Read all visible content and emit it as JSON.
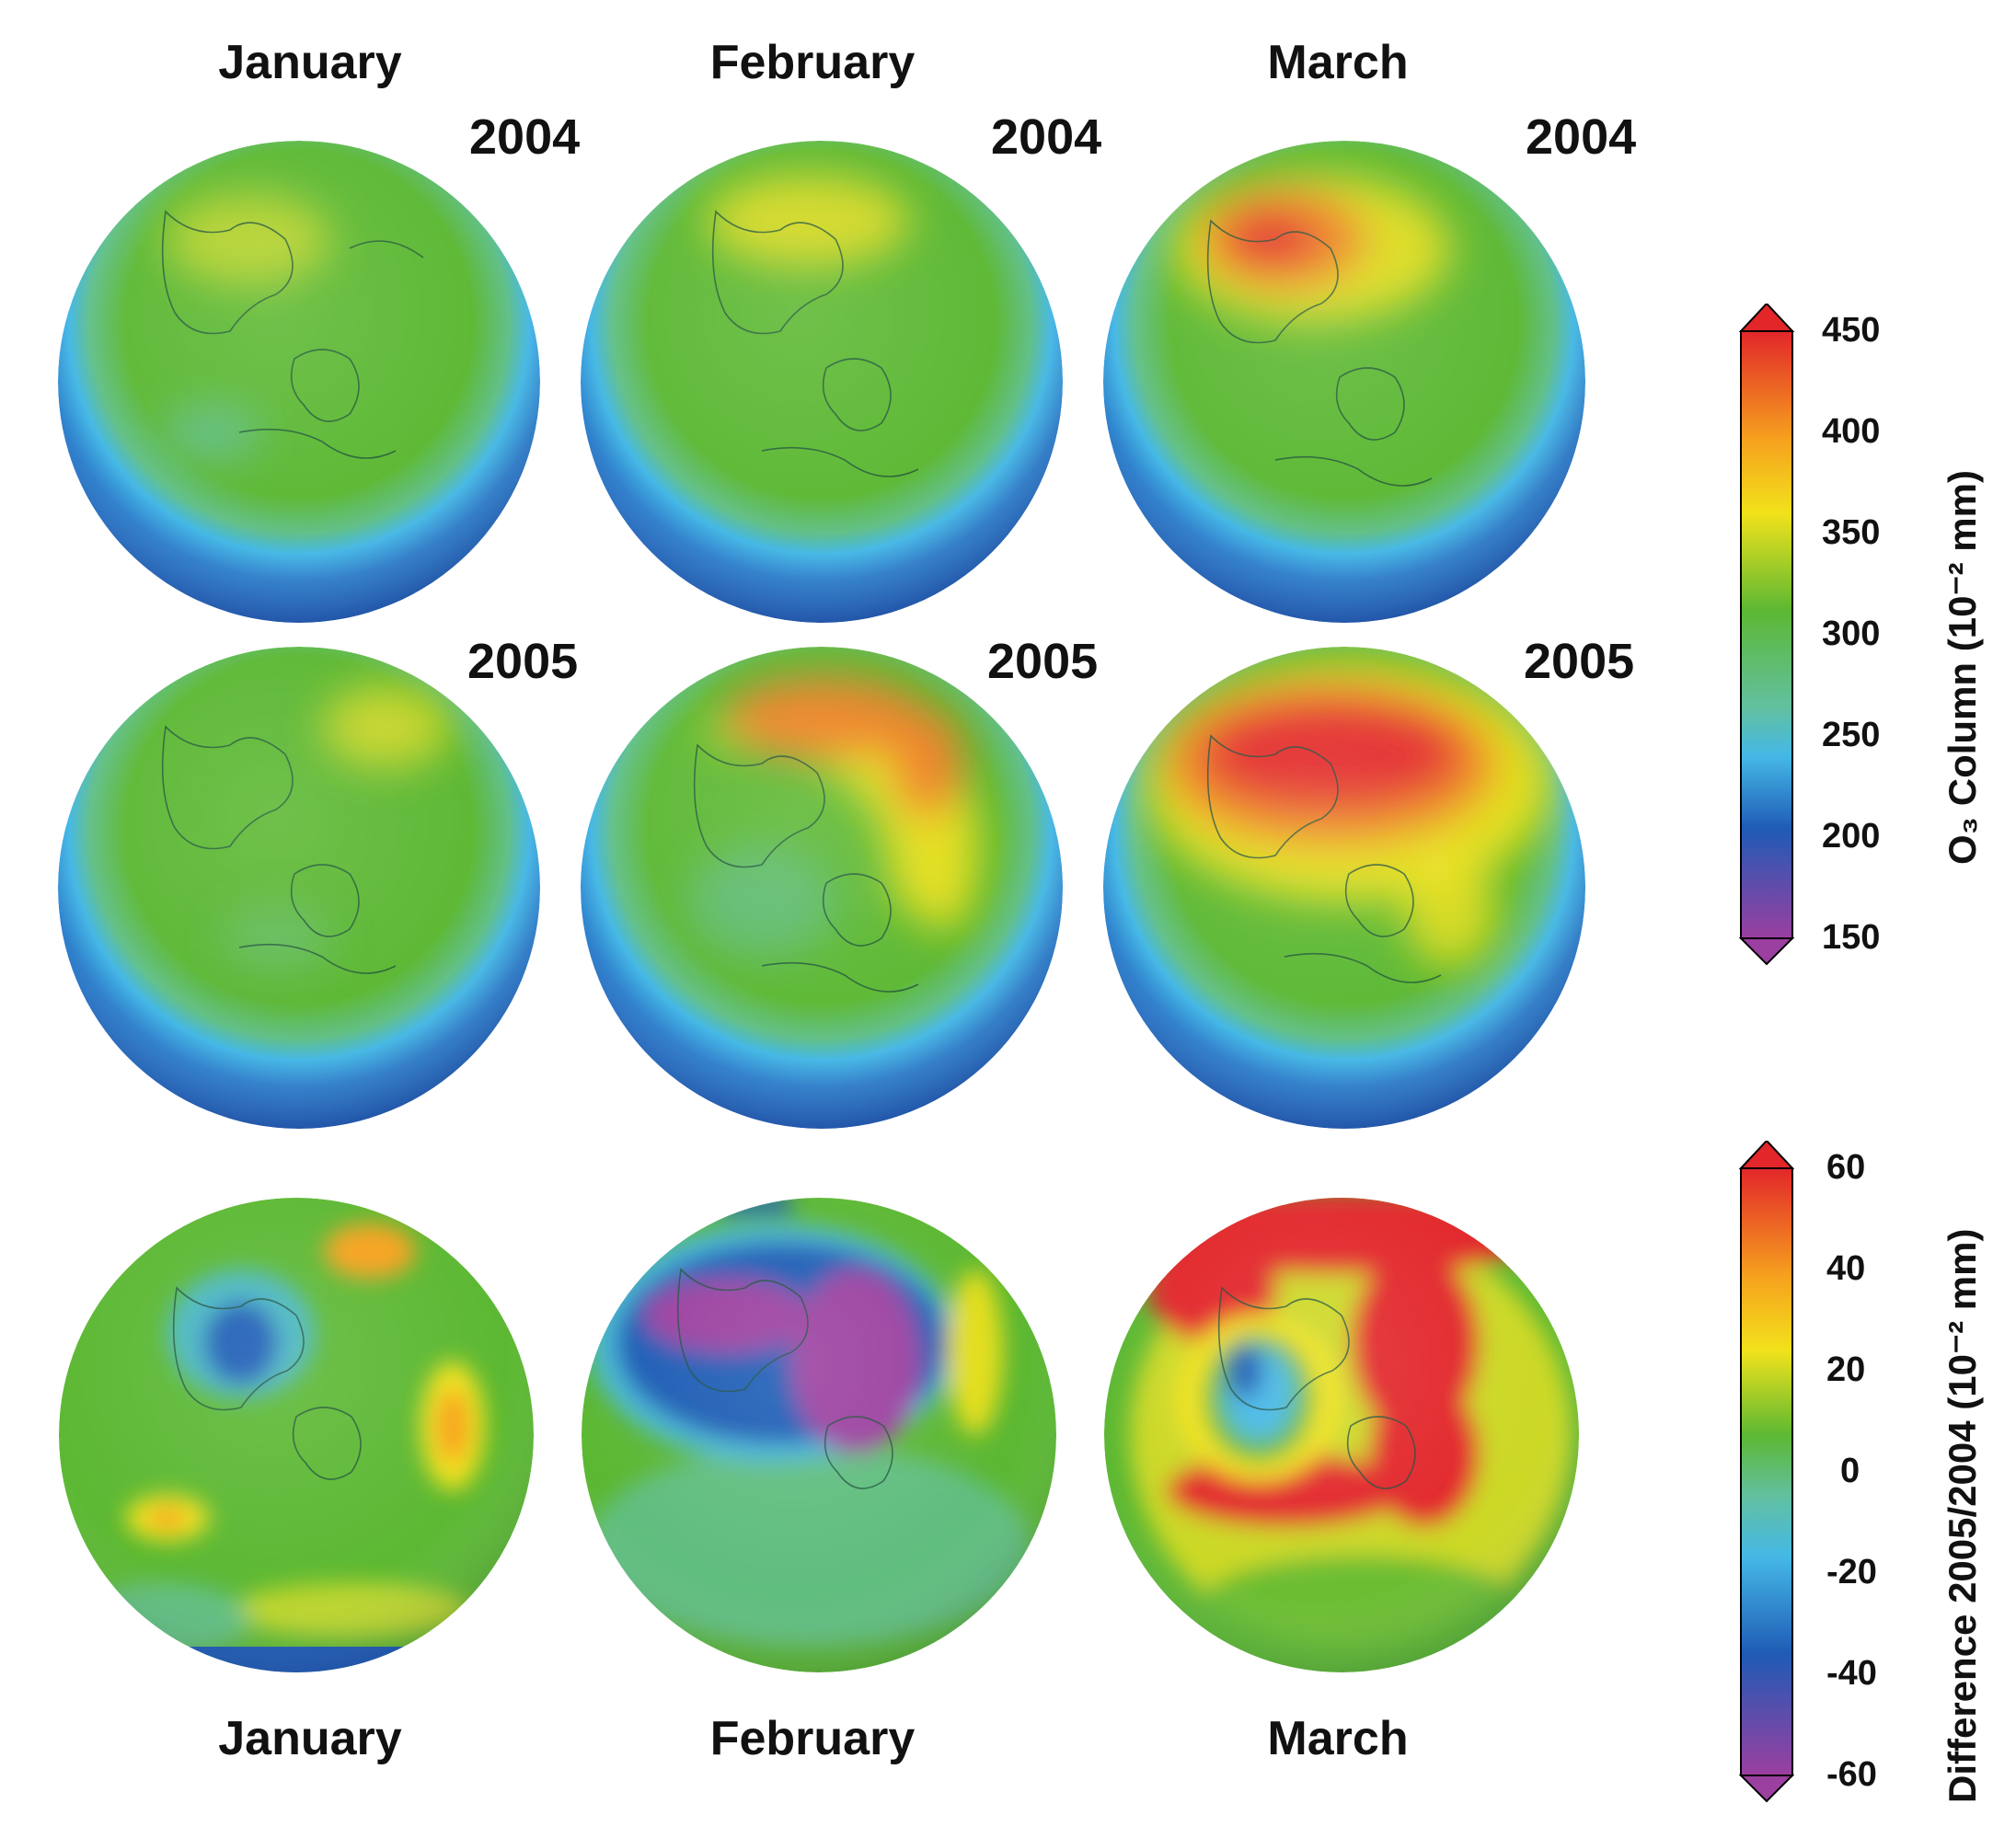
{
  "headers": {
    "top": [
      "January",
      "February",
      "March"
    ],
    "bottom": [
      "January",
      "February",
      "March"
    ]
  },
  "years": {
    "row1": [
      "2004",
      "2004",
      "2004"
    ],
    "row2": [
      "2005",
      "2005",
      "2005"
    ]
  },
  "colorbar_top": {
    "title": "O₃ Column (10⁻² mm)",
    "ticks": [
      "450",
      "400",
      "350",
      "300",
      "250",
      "200",
      "150"
    ],
    "range": [
      150,
      450
    ]
  },
  "colorbar_bottom": {
    "title": "Difference 2005/2004 (10⁻² mm)",
    "ticks": [
      "60",
      "40",
      "20",
      "0",
      "-20",
      "-40",
      "-60"
    ],
    "range": [
      -60,
      60
    ]
  },
  "colors": {
    "low": "#9b3fa0",
    "blue": "#1f5bb5",
    "cyan": "#45b8e6",
    "green": "#5cb833",
    "yellow": "#f2e21b",
    "orange": "#f6a21e",
    "red": "#e2262a"
  }
}
